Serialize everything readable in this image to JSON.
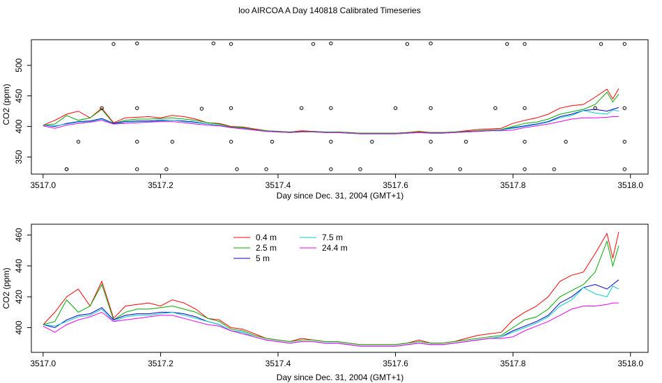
{
  "title": "loo AIRCOA A  Day 140818  Calibrated Timeseries",
  "chart_data": [
    {
      "type": "line",
      "xlabel": "Day since Dec. 31, 2004 (GMT+1)",
      "ylabel": "CO2 (ppm)",
      "xlim": [
        3516.98,
        3518.03
      ],
      "ylim": [
        322,
        542
      ],
      "xticks": [
        3517.0,
        3517.2,
        3517.4,
        3517.6,
        3517.8,
        3518.0
      ],
      "xtick_labels": [
        "3517.0",
        "3517.2",
        "3517.4",
        "3517.6",
        "3517.8",
        "3518.0"
      ],
      "yticks": [
        350,
        400,
        450,
        500
      ],
      "ytick_labels": [
        "350",
        "400",
        "450",
        "500"
      ],
      "grid": false,
      "legend": "none",
      "series": [
        {
          "color": "#ff0000",
          "x": [
            3517.0,
            3517.02,
            3517.04,
            3517.06,
            3517.08,
            3517.1,
            3517.12,
            3517.14,
            3517.16,
            3517.18,
            3517.2,
            3517.22,
            3517.24,
            3517.26,
            3517.28,
            3517.3,
            3517.32,
            3517.34,
            3517.36,
            3517.38,
            3517.4,
            3517.42,
            3517.44,
            3517.46,
            3517.48,
            3517.5,
            3517.52,
            3517.54,
            3517.56,
            3517.58,
            3517.6,
            3517.62,
            3517.64,
            3517.66,
            3517.68,
            3517.7,
            3517.72,
            3517.74,
            3517.76,
            3517.78,
            3517.8,
            3517.82,
            3517.84,
            3517.86,
            3517.88,
            3517.9,
            3517.92,
            3517.94,
            3517.96,
            3517.97,
            3517.98
          ],
          "y": [
            402,
            410,
            420,
            425,
            414,
            430,
            406,
            414,
            415,
            416,
            414,
            418,
            416,
            412,
            406,
            405,
            400,
            399,
            396,
            393,
            392,
            391,
            393,
            392,
            391,
            391,
            390,
            389,
            389,
            389,
            389,
            390,
            392,
            390,
            390,
            391,
            393,
            395,
            396,
            397,
            405,
            410,
            414,
            420,
            430,
            434,
            436,
            448,
            461,
            445,
            462
          ]
        },
        {
          "color": "#00aa00",
          "x": [
            3517.0,
            3517.02,
            3517.04,
            3517.06,
            3517.08,
            3517.1,
            3517.12,
            3517.14,
            3517.16,
            3517.18,
            3517.2,
            3517.22,
            3517.24,
            3517.26,
            3517.28,
            3517.3,
            3517.32,
            3517.34,
            3517.36,
            3517.38,
            3517.4,
            3517.42,
            3517.44,
            3517.46,
            3517.48,
            3517.5,
            3517.52,
            3517.54,
            3517.56,
            3517.58,
            3517.6,
            3517.62,
            3517.64,
            3517.66,
            3517.68,
            3517.7,
            3517.72,
            3517.74,
            3517.76,
            3517.78,
            3517.8,
            3517.82,
            3517.84,
            3517.86,
            3517.88,
            3517.9,
            3517.92,
            3517.94,
            3517.96,
            3517.97,
            3517.98
          ],
          "y": [
            402,
            404,
            418,
            410,
            414,
            428,
            405,
            410,
            412,
            412,
            413,
            414,
            412,
            410,
            406,
            404,
            399,
            398,
            395,
            393,
            392,
            391,
            392,
            392,
            391,
            391,
            390,
            389,
            389,
            389,
            389,
            390,
            391,
            390,
            390,
            391,
            392,
            393,
            394,
            395,
            400,
            405,
            407,
            412,
            420,
            424,
            428,
            436,
            456,
            440,
            453
          ]
        },
        {
          "color": "#0000cc",
          "x": [
            3517.0,
            3517.02,
            3517.04,
            3517.06,
            3517.08,
            3517.1,
            3517.12,
            3517.14,
            3517.16,
            3517.18,
            3517.2,
            3517.22,
            3517.24,
            3517.26,
            3517.28,
            3517.3,
            3517.32,
            3517.34,
            3517.36,
            3517.38,
            3517.4,
            3517.42,
            3517.44,
            3517.46,
            3517.48,
            3517.5,
            3517.52,
            3517.54,
            3517.56,
            3517.58,
            3517.6,
            3517.62,
            3517.64,
            3517.66,
            3517.68,
            3517.7,
            3517.72,
            3517.74,
            3517.76,
            3517.78,
            3517.8,
            3517.82,
            3517.84,
            3517.86,
            3517.88,
            3517.9,
            3517.92,
            3517.94,
            3517.96,
            3517.97,
            3517.98
          ],
          "y": [
            402,
            400,
            405,
            408,
            409,
            413,
            405,
            408,
            409,
            409,
            410,
            410,
            409,
            407,
            404,
            402,
            398,
            397,
            394,
            392,
            391,
            390,
            391,
            391,
            390,
            390,
            389,
            388,
            388,
            388,
            388,
            389,
            390,
            389,
            389,
            390,
            391,
            392,
            393,
            394,
            398,
            401,
            404,
            408,
            416,
            420,
            426,
            428,
            425,
            428,
            431
          ]
        },
        {
          "color": "#00cccc",
          "x": [
            3517.0,
            3517.02,
            3517.04,
            3517.06,
            3517.08,
            3517.1,
            3517.12,
            3517.14,
            3517.16,
            3517.18,
            3517.2,
            3517.22,
            3517.24,
            3517.26,
            3517.28,
            3517.3,
            3517.32,
            3517.34,
            3517.36,
            3517.38,
            3517.4,
            3517.42,
            3517.44,
            3517.46,
            3517.48,
            3517.5,
            3517.52,
            3517.54,
            3517.56,
            3517.58,
            3517.6,
            3517.62,
            3517.64,
            3517.66,
            3517.68,
            3517.7,
            3517.72,
            3517.74,
            3517.76,
            3517.78,
            3517.8,
            3517.82,
            3517.84,
            3517.86,
            3517.88,
            3517.9,
            3517.92,
            3517.94,
            3517.96,
            3517.97,
            3517.98
          ],
          "y": [
            402,
            401,
            404,
            407,
            408,
            412,
            404,
            407,
            408,
            408,
            409,
            410,
            408,
            406,
            404,
            402,
            398,
            397,
            394,
            392,
            391,
            390,
            391,
            391,
            390,
            390,
            389,
            388,
            388,
            388,
            388,
            389,
            390,
            389,
            389,
            390,
            391,
            392,
            393,
            394,
            397,
            400,
            403,
            407,
            414,
            418,
            426,
            422,
            420,
            427,
            425
          ]
        },
        {
          "color": "#ee00ee",
          "x": [
            3517.0,
            3517.02,
            3517.04,
            3517.06,
            3517.08,
            3517.1,
            3517.12,
            3517.14,
            3517.16,
            3517.18,
            3517.2,
            3517.22,
            3517.24,
            3517.26,
            3517.28,
            3517.3,
            3517.32,
            3517.34,
            3517.36,
            3517.38,
            3517.4,
            3517.42,
            3517.44,
            3517.46,
            3517.48,
            3517.5,
            3517.52,
            3517.54,
            3517.56,
            3517.58,
            3517.6,
            3517.62,
            3517.64,
            3517.66,
            3517.68,
            3517.7,
            3517.72,
            3517.74,
            3517.76,
            3517.78,
            3517.8,
            3517.82,
            3517.84,
            3517.86,
            3517.88,
            3517.9,
            3517.92,
            3517.94,
            3517.96,
            3517.97,
            3517.98
          ],
          "y": [
            401,
            397,
            402,
            405,
            407,
            410,
            404,
            405,
            406,
            407,
            408,
            408,
            406,
            404,
            402,
            401,
            398,
            396,
            394,
            392,
            391,
            390,
            391,
            391,
            390,
            390,
            389,
            388,
            388,
            388,
            388,
            389,
            390,
            389,
            389,
            390,
            391,
            392,
            393,
            393,
            394,
            398,
            401,
            404,
            408,
            412,
            414,
            414,
            415,
            416,
            416
          ]
        }
      ],
      "points": {
        "color": "#000000",
        "x": [
          3517.04,
          3517.12,
          3517.16,
          3517.29,
          3517.32,
          3517.46,
          3517.49,
          3517.62,
          3517.66,
          3517.79,
          3517.82,
          3517.95,
          3517.99,
          3517.1,
          3517.16,
          3517.27,
          3517.32,
          3517.44,
          3517.49,
          3517.6,
          3517.66,
          3517.77,
          3517.82,
          3517.94,
          3517.99,
          3517.06,
          3517.16,
          3517.22,
          3517.32,
          3517.39,
          3517.49,
          3517.56,
          3517.66,
          3517.72,
          3517.82,
          3517.89,
          3517.99,
          3517.04,
          3517.16,
          3517.21,
          3517.33,
          3517.38,
          3517.49,
          3517.54,
          3517.66,
          3517.71,
          3517.82,
          3517.87,
          3517.99
        ],
        "y": [
          330,
          535,
          536,
          536,
          535,
          535,
          536,
          535,
          536,
          535,
          535,
          535,
          535,
          430,
          430,
          429,
          430,
          430,
          430,
          430,
          430,
          430,
          430,
          430,
          430,
          375,
          375,
          375,
          375,
          375,
          375,
          375,
          375,
          375,
          375,
          375,
          375,
          330,
          330,
          330,
          330,
          330,
          330,
          330,
          330,
          330,
          330,
          330,
          330
        ]
      }
    },
    {
      "type": "line",
      "xlabel": "Day since Dec. 31, 2004 (GMT+1)",
      "ylabel": "CO2 (ppm)",
      "xlim": [
        3516.98,
        3518.03
      ],
      "ylim": [
        384,
        467
      ],
      "xticks": [
        3517.0,
        3517.2,
        3517.4,
        3517.6,
        3517.8,
        3518.0
      ],
      "xtick_labels": [
        "3517.0",
        "3517.2",
        "3517.4",
        "3517.6",
        "3517.8",
        "3518.0"
      ],
      "yticks": [
        400,
        420,
        440,
        460
      ],
      "ytick_labels": [
        "400",
        "420",
        "440",
        "460"
      ],
      "grid": false,
      "legend": "top-left",
      "series": [
        {
          "name": "0.4 m",
          "color": "#ff0000"
        },
        {
          "name": "2.5 m",
          "color": "#00aa00"
        },
        {
          "name": "5 m",
          "color": "#0000cc"
        },
        {
          "name": "7.5 m",
          "color": "#00cccc"
        },
        {
          "name": "24.4 m",
          "color": "#ee00ee"
        }
      ]
    }
  ]
}
